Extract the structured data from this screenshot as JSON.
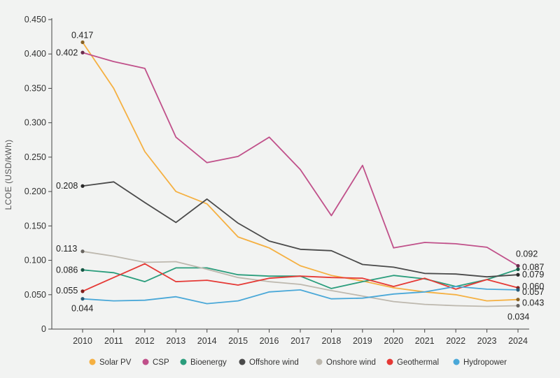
{
  "chart_data": {
    "type": "line",
    "ylabel": "LCOE (USD/kWh)",
    "xlabel": "",
    "ylim": [
      0,
      0.45
    ],
    "grid": "none",
    "legend_position": "bottom",
    "x": [
      "2010",
      "2011",
      "2012",
      "2013",
      "2014",
      "2015",
      "2016",
      "2017",
      "2018",
      "2019",
      "2020",
      "2021",
      "2022",
      "2023",
      "2024"
    ],
    "y_ticks": [
      "0",
      "0.050",
      "0.100",
      "0.150",
      "0.200",
      "0.250",
      "0.300",
      "0.350",
      "0.400",
      "0.450"
    ],
    "series": [
      {
        "name": "Solar PV",
        "color": "#f5b041",
        "values": [
          0.417,
          0.35,
          0.258,
          0.2,
          0.182,
          0.134,
          0.118,
          0.092,
          0.078,
          0.07,
          0.06,
          0.054,
          0.05,
          0.041,
          0.043
        ]
      },
      {
        "name": "CSP",
        "color": "#c0508a",
        "values": [
          0.402,
          0.389,
          0.379,
          0.279,
          0.242,
          0.251,
          0.279,
          0.232,
          0.165,
          0.238,
          0.118,
          0.126,
          0.124,
          0.119,
          0.092
        ]
      },
      {
        "name": "Bioenergy",
        "color": "#2a9d7c",
        "values": [
          0.086,
          0.082,
          0.069,
          0.089,
          0.089,
          0.079,
          0.077,
          0.077,
          0.059,
          0.069,
          0.078,
          0.073,
          0.062,
          0.072,
          0.087
        ]
      },
      {
        "name": "Offshore wind",
        "color": "#4a4a4a",
        "values": [
          0.208,
          0.214,
          0.184,
          0.155,
          0.189,
          0.154,
          0.128,
          0.116,
          0.114,
          0.094,
          0.09,
          0.081,
          0.08,
          0.076,
          0.079
        ]
      },
      {
        "name": "Onshore wind",
        "color": "#bdb8ae",
        "values": [
          0.113,
          0.106,
          0.097,
          0.098,
          0.087,
          0.075,
          0.069,
          0.065,
          0.056,
          0.048,
          0.04,
          0.036,
          0.034,
          0.033,
          0.034
        ]
      },
      {
        "name": "Geothermal",
        "color": "#e53935",
        "values": [
          0.055,
          0.075,
          0.095,
          0.069,
          0.071,
          0.064,
          0.074,
          0.077,
          0.075,
          0.074,
          0.062,
          0.074,
          0.058,
          0.072,
          0.06
        ]
      },
      {
        "name": "Hydropower",
        "color": "#4aa8d8",
        "values": [
          0.044,
          0.041,
          0.042,
          0.047,
          0.037,
          0.041,
          0.054,
          0.057,
          0.044,
          0.045,
          0.051,
          0.054,
          0.062,
          0.058,
          0.057
        ]
      }
    ],
    "annotations": [
      {
        "text": "0.417",
        "series": "Solar PV",
        "x": "2010"
      },
      {
        "text": "0.402",
        "series": "CSP",
        "x": "2010"
      },
      {
        "text": "0.208",
        "series": "Offshore wind",
        "x": "2010"
      },
      {
        "text": "0.113",
        "series": "Onshore wind",
        "x": "2010"
      },
      {
        "text": "0.086",
        "series": "Bioenergy",
        "x": "2010"
      },
      {
        "text": "0.055",
        "series": "Geothermal",
        "x": "2010"
      },
      {
        "text": "0.044",
        "series": "Hydropower",
        "x": "2010"
      },
      {
        "text": "0.092",
        "series": "CSP",
        "x": "2024"
      },
      {
        "text": "0.087",
        "series": "Bioenergy",
        "x": "2024"
      },
      {
        "text": "0.079",
        "series": "Offshore wind",
        "x": "2024"
      },
      {
        "text": "0.060",
        "series": "Geothermal",
        "x": "2024"
      },
      {
        "text": "0.057",
        "series": "Hydropower",
        "x": "2024"
      },
      {
        "text": "0.043",
        "series": "Solar PV",
        "x": "2024"
      },
      {
        "text": "0.034",
        "series": "Onshore wind",
        "x": "2024"
      }
    ]
  }
}
